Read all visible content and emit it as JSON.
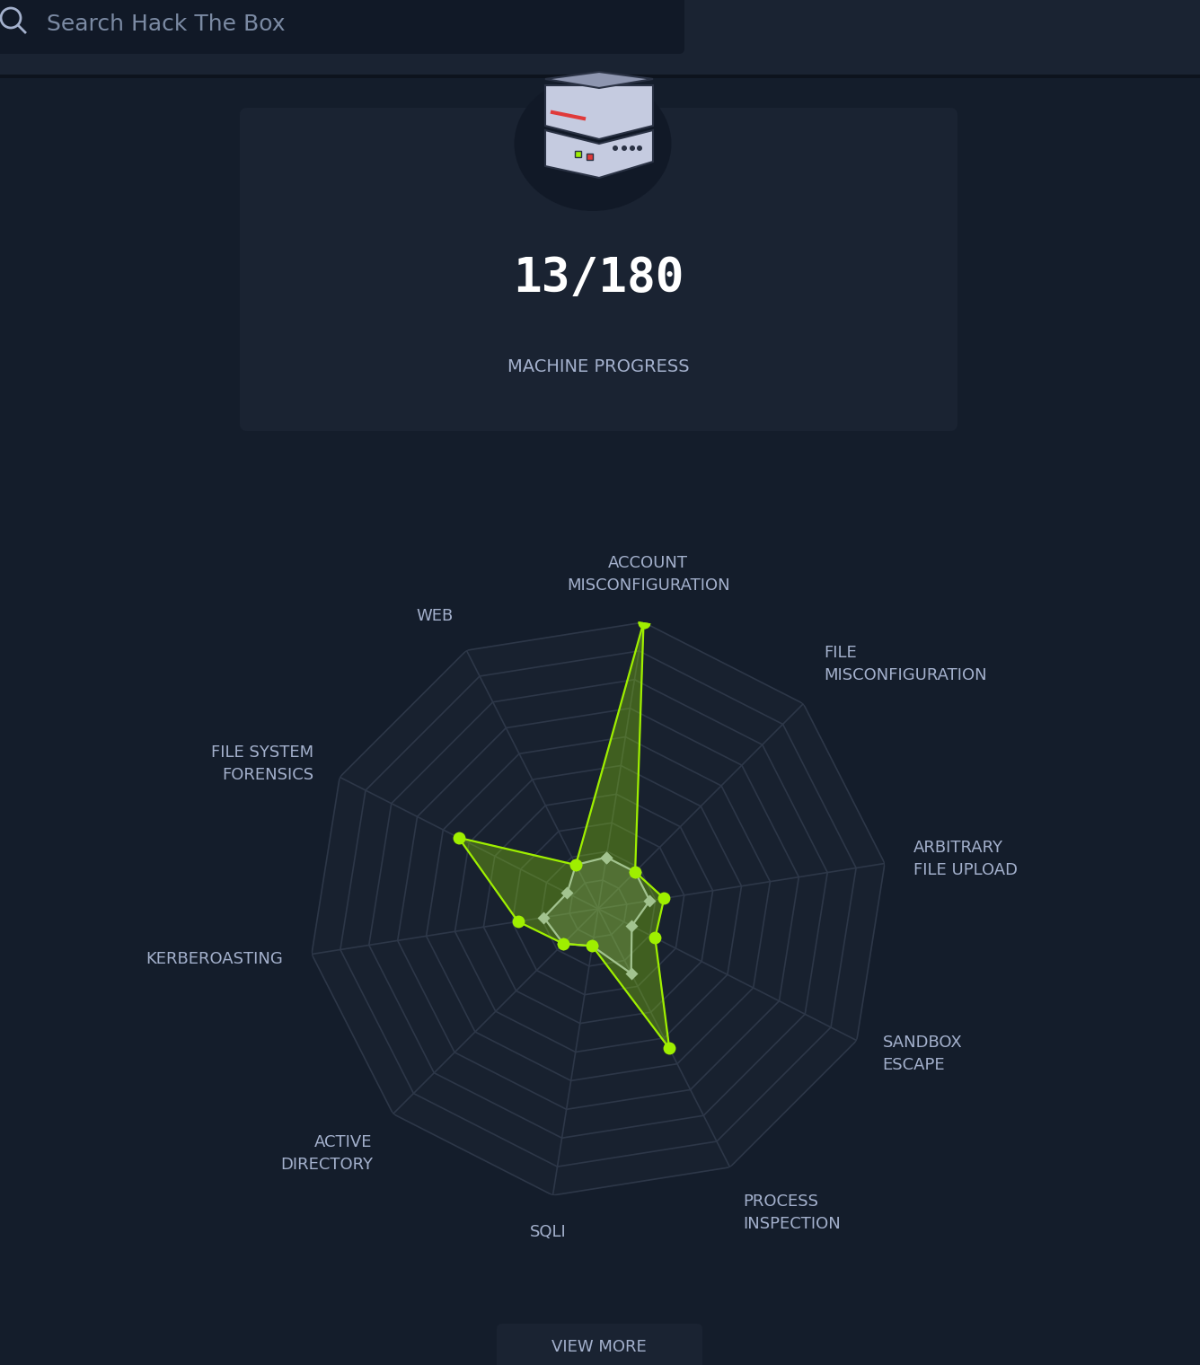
{
  "header": {
    "search_placeholder": "Search Hack The Box"
  },
  "progress": {
    "value": "13/180",
    "label": "MACHINE PROGRESS"
  },
  "chart_data": {
    "type": "radar",
    "categories": [
      "ACCOUNT\nMISCONFIGURATION",
      "FILE\nMISCONFIGURATION",
      "ARBITRARY\nFILE UPLOAD",
      "SANDBOX\nESCAPE",
      "PROCESS\nINSPECTION",
      "SQLI",
      "ACTIVE\nDIRECTORY",
      "KERBEROASTING",
      "FILE SYSTEM\nFORENSICS",
      "WEB"
    ],
    "series": [
      {
        "color": "#9fef00",
        "marker": "circle",
        "values": [
          100,
          18,
          23,
          22,
          54,
          13,
          17,
          28,
          54,
          17
        ]
      },
      {
        "color": "#a4b1cd",
        "marker": "diamond",
        "values": [
          18,
          18,
          18,
          13,
          25,
          13,
          17,
          19,
          12,
          17
        ]
      }
    ],
    "ylim": [
      0,
      100
    ],
    "yticks": [
      0,
      10,
      20,
      30,
      40,
      50,
      60,
      70,
      80,
      90,
      100
    ],
    "grid": true,
    "tick_labels": "x"
  },
  "button": {
    "label": "VIEW MORE"
  }
}
